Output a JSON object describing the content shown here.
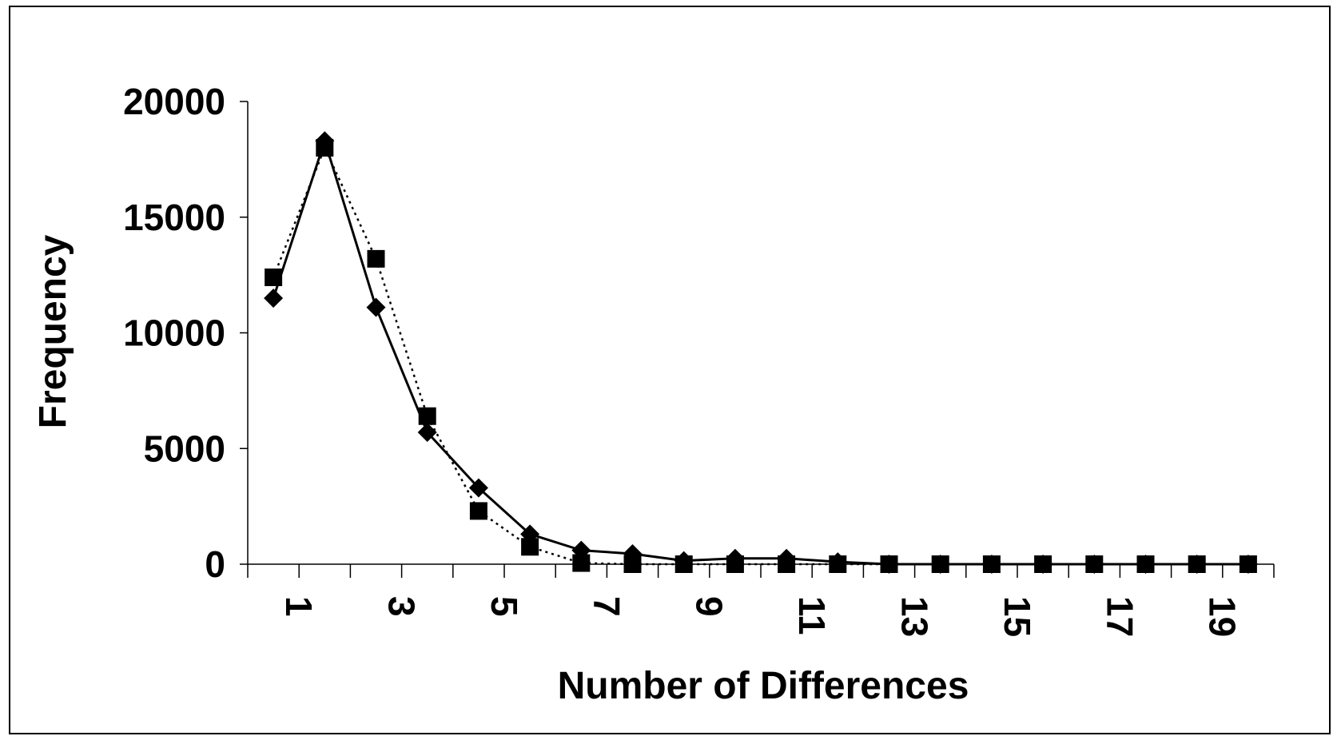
{
  "chart_data": {
    "type": "line",
    "title": "",
    "xlabel": "Number of Differences",
    "ylabel": "Frequency",
    "x": [
      1,
      2,
      3,
      4,
      5,
      6,
      7,
      8,
      9,
      10,
      11,
      12,
      13,
      14,
      15,
      16,
      17,
      18,
      19,
      20
    ],
    "x_tick_labels": [
      "1",
      "3",
      "5",
      "7",
      "9",
      "11",
      "13",
      "15",
      "17",
      "19"
    ],
    "y_tick_labels": [
      "0",
      "5000",
      "10000",
      "15000",
      "20000"
    ],
    "xlim": [
      0.5,
      20.5
    ],
    "ylim": [
      0,
      20000
    ],
    "grid": false,
    "legend": "none",
    "series": [
      {
        "marker": "diamond",
        "line_style": "solid",
        "values": [
          11500,
          18300,
          11100,
          5700,
          3300,
          1300,
          600,
          450,
          150,
          250,
          250,
          100,
          0,
          0,
          0,
          0,
          0,
          0,
          0,
          0
        ]
      },
      {
        "marker": "square",
        "line_style": "dotted",
        "values": [
          12400,
          18000,
          13200,
          6400,
          2300,
          750,
          50,
          0,
          0,
          0,
          0,
          0,
          0,
          0,
          0,
          0,
          0,
          0,
          0,
          0
        ]
      }
    ],
    "colors": {
      "line": "#000000",
      "background": "#ffffff"
    }
  }
}
